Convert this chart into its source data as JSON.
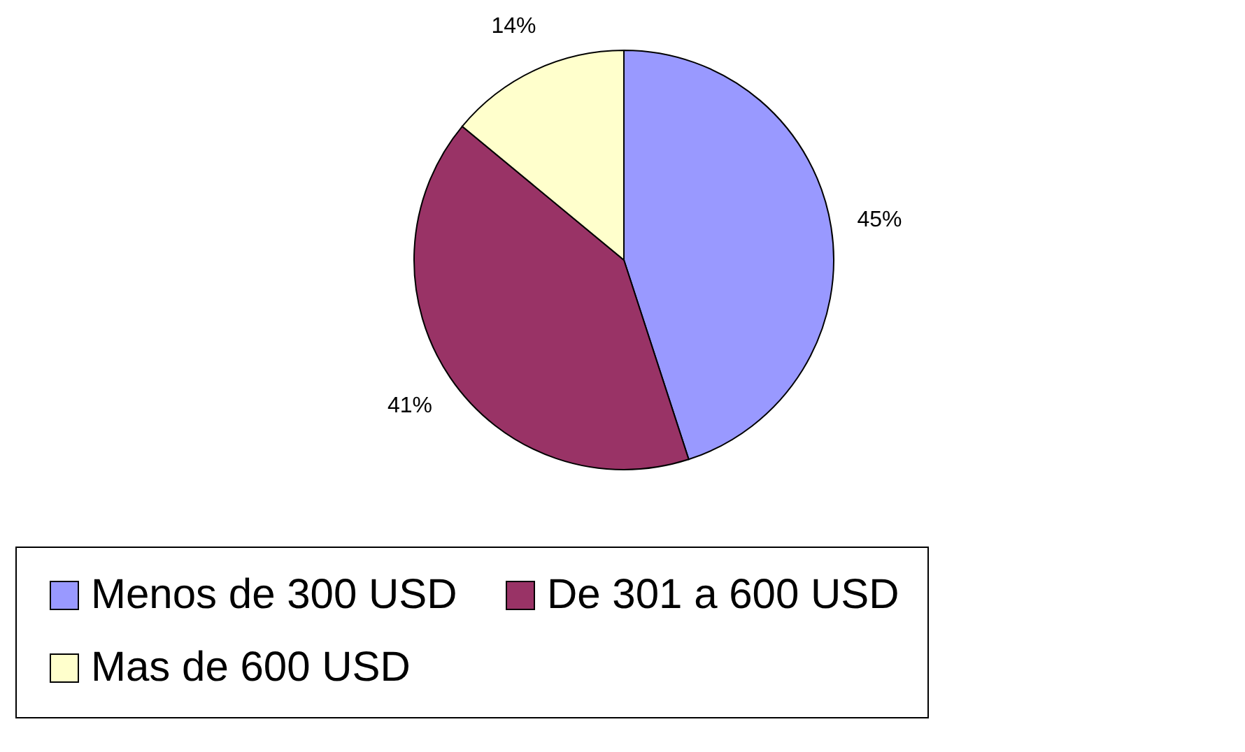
{
  "chart_data": {
    "type": "pie",
    "categories": [
      "Menos de 300 USD",
      "De 301 a 600 USD",
      "Mas de 600 USD"
    ],
    "values": [
      45,
      41,
      14
    ],
    "colors": [
      "#9999ff",
      "#993366",
      "#ffffcc"
    ],
    "value_labels": [
      "45%",
      "41%",
      "14%"
    ],
    "legend": "bottom"
  }
}
